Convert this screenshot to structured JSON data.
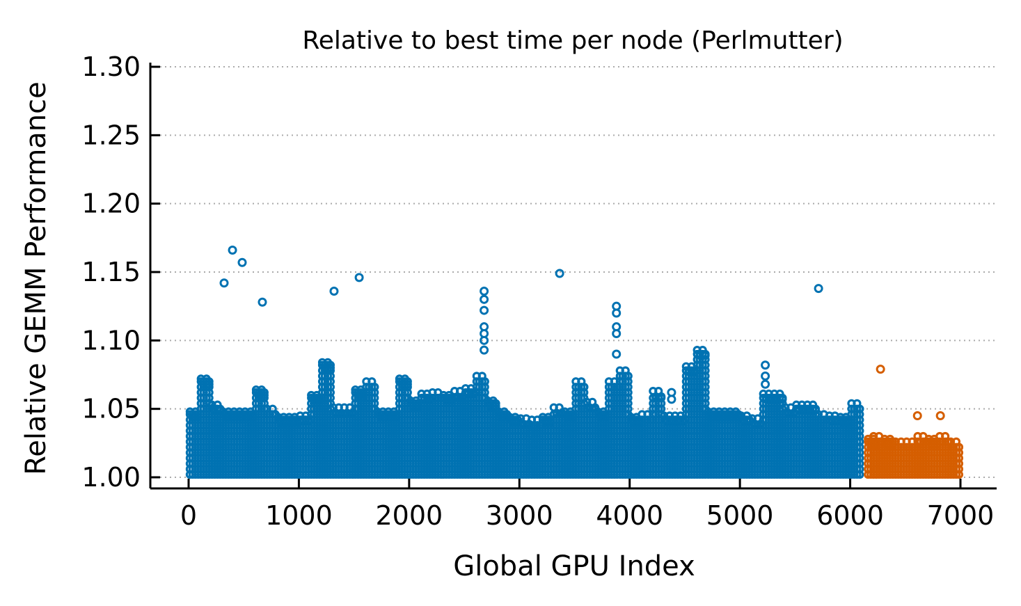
{
  "chart_data": {
    "type": "scatter",
    "title": "Relative to best time per node (Perlmutter)",
    "xlabel": "Global GPU Index",
    "ylabel": "Relative GEMM Performance",
    "xlim": [
      -350,
      7330
    ],
    "ylim": [
      0.992,
      1.3
    ],
    "xticks": [
      0,
      1000,
      2000,
      3000,
      4000,
      5000,
      6000,
      7000
    ],
    "xtick_labels": [
      "0",
      "1000",
      "2000",
      "3000",
      "4000",
      "5000",
      "6000",
      "7000"
    ],
    "yticks": [
      1.0,
      1.05,
      1.1,
      1.15,
      1.2,
      1.25,
      1.3
    ],
    "ytick_labels": [
      "1.00",
      "1.05",
      "1.10",
      "1.15",
      "1.20",
      "1.25",
      "1.30"
    ],
    "grid": "horizontal dotted",
    "marker": "open-circle",
    "series": [
      {
        "color": "#0072B2",
        "dense_band": {
          "bin_width": 100,
          "bin_start": [
            0,
            100,
            200,
            300,
            400,
            500,
            600,
            700,
            800,
            900,
            1000,
            1100,
            1200,
            1300,
            1400,
            1500,
            1600,
            1700,
            1800,
            1900,
            2000,
            2100,
            2200,
            2300,
            2400,
            2500,
            2600,
            2700,
            2800,
            2900,
            3000,
            3100,
            3200,
            3300,
            3400,
            3500,
            3600,
            3700,
            3800,
            3900,
            4000,
            4100,
            4200,
            4300,
            4400,
            4500,
            4600,
            4700,
            4800,
            4900,
            5000,
            5100,
            5200,
            5300,
            5400,
            5500,
            5600,
            5700,
            5800,
            5900,
            6000
          ],
          "min": 1.0,
          "max": [
            1.05,
            1.074,
            1.055,
            1.05,
            1.05,
            1.05,
            1.066,
            1.052,
            1.046,
            1.046,
            1.047,
            1.062,
            1.086,
            1.053,
            1.053,
            1.066,
            1.072,
            1.05,
            1.05,
            1.074,
            1.058,
            1.063,
            1.064,
            1.062,
            1.065,
            1.067,
            1.076,
            1.058,
            1.05,
            1.046,
            1.045,
            1.044,
            1.046,
            1.053,
            1.05,
            1.072,
            1.057,
            1.05,
            1.072,
            1.08,
            1.046,
            1.048,
            1.065,
            1.047,
            1.047,
            1.083,
            1.095,
            1.05,
            1.05,
            1.05,
            1.047,
            1.045,
            1.063,
            1.063,
            1.053,
            1.055,
            1.055,
            1.048,
            1.047,
            1.046,
            1.056
          ]
        },
        "outliers": {
          "x": [
            322,
            398,
            486,
            669,
            1319,
            1547,
            3365,
            5713,
            2680,
            2680,
            2680,
            2680,
            2680,
            2680,
            2680,
            3880,
            3880,
            3880,
            3880,
            3880,
            5230,
            5230,
            5230,
            4380,
            4380
          ],
          "y": [
            1.142,
            1.166,
            1.157,
            1.128,
            1.136,
            1.146,
            1.149,
            1.138,
            1.093,
            1.1,
            1.105,
            1.11,
            1.122,
            1.13,
            1.136,
            1.09,
            1.105,
            1.11,
            1.12,
            1.125,
            1.068,
            1.074,
            1.082,
            1.057,
            1.062
          ]
        }
      },
      {
        "color": "#D55E00",
        "dense_band": {
          "bin_width": 100,
          "bin_start": [
            6150,
            6200,
            6300,
            6400,
            6500,
            6600,
            6700,
            6800,
            6900
          ],
          "min": 1.0,
          "max": [
            1.03,
            1.032,
            1.03,
            1.028,
            1.028,
            1.032,
            1.03,
            1.032,
            1.028
          ]
        },
        "outliers": {
          "x": [
            6275,
            6610,
            6818
          ],
          "y": [
            1.079,
            1.045,
            1.045
          ]
        }
      }
    ]
  }
}
